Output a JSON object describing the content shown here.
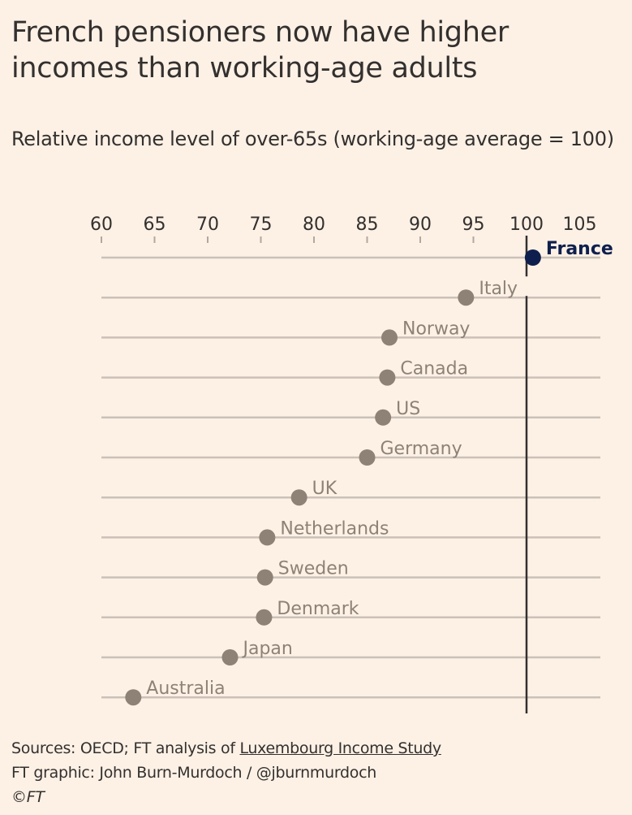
{
  "chart_data": {
    "type": "scatter",
    "title": "French pensioners now have higher incomes than working-age adults",
    "subtitle": "Relative income level of over-65s (working-age average = 100)",
    "xlim": [
      60,
      105
    ],
    "xticks": [
      60,
      65,
      70,
      75,
      80,
      85,
      90,
      95,
      100,
      105
    ],
    "reference_line": 100,
    "grid": true,
    "categories": [
      "France",
      "Italy",
      "Norway",
      "Canada",
      "US",
      "Germany",
      "UK",
      "Netherlands",
      "Sweden",
      "Denmark",
      "Japan",
      "Australia"
    ],
    "values": [
      100.6,
      94.3,
      87.1,
      86.9,
      86.5,
      85.0,
      78.6,
      75.6,
      75.4,
      75.3,
      72.1,
      63.0
    ],
    "highlight": "France",
    "colors": {
      "highlight": "#0f1f4d",
      "default": "#8e8175",
      "gridline": "#ccc1b7",
      "reference": "#33302e",
      "background": "#fdf1e6"
    }
  },
  "footer": {
    "sources_prefix": "Sources: OECD; FT analysis of ",
    "sources_link": "Luxembourg Income Study",
    "credit": "FT graphic: John Burn-Murdoch / @jburnmurdoch",
    "copyright": "©FT"
  }
}
